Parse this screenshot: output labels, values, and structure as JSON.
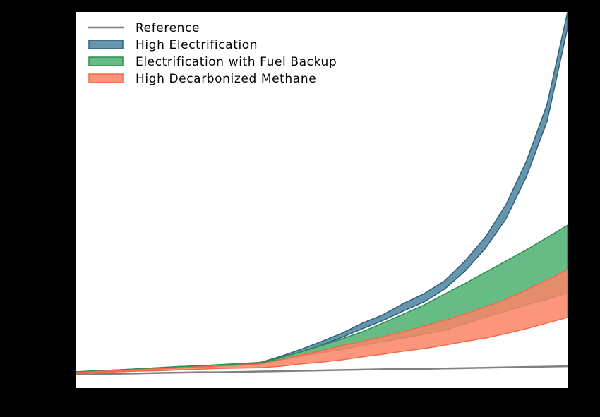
{
  "chart_data": {
    "type": "band",
    "xlim": [
      0,
      24
    ],
    "ylim": [
      0,
      100
    ],
    "x": [
      0,
      1,
      2,
      3,
      4,
      5,
      6,
      7,
      8,
      9,
      10,
      11,
      12,
      13,
      14,
      15,
      16,
      17,
      18,
      19,
      20,
      21,
      22,
      23,
      24
    ],
    "legend": "upper left",
    "series": [
      {
        "name": "Reference",
        "kind": "line",
        "color": "#808080",
        "values": [
          3.6,
          3.7,
          3.8,
          3.9,
          4.0,
          4.1,
          4.2,
          4.2,
          4.3,
          4.4,
          4.5,
          4.6,
          4.7,
          4.8,
          4.9,
          5.0,
          5.1,
          5.1,
          5.2,
          5.3,
          5.4,
          5.5,
          5.6,
          5.7,
          5.8
        ]
      },
      {
        "name": "High Electrification",
        "kind": "band",
        "color": "#4a84a0",
        "edge": "#2e5f78",
        "upper": [
          4.3,
          4.6,
          4.8,
          5.1,
          5.4,
          5.7,
          5.9,
          6.2,
          6.5,
          6.8,
          8.4,
          10.3,
          12.4,
          14.6,
          17.3,
          19.5,
          22.5,
          25.1,
          28.5,
          33.8,
          40.2,
          48.8,
          60.4,
          75.4,
          100
        ],
        "lower": [
          3.9,
          4.2,
          4.4,
          4.7,
          5.0,
          5.3,
          5.5,
          5.8,
          6.1,
          6.4,
          8.0,
          9.6,
          11.4,
          13.5,
          15.8,
          18.0,
          20.5,
          22.9,
          26.3,
          31.1,
          37.2,
          45.0,
          56.3,
          70.9,
          95.7
        ]
      },
      {
        "name": "Electrification with Fuel Backup",
        "kind": "band",
        "color": "#4caf6e",
        "edge": "#2e8b50",
        "upper": [
          4.3,
          4.6,
          4.8,
          5.1,
          5.4,
          5.7,
          5.9,
          6.2,
          6.5,
          6.8,
          8.1,
          9.6,
          11.3,
          13.1,
          15.0,
          17.3,
          19.7,
          22.1,
          25.0,
          27.8,
          30.8,
          33.8,
          36.8,
          40.0,
          43.3
        ],
        "lower": [
          3.9,
          4.2,
          4.4,
          4.7,
          5.0,
          5.3,
          5.5,
          5.8,
          6.1,
          6.8,
          7.5,
          8.4,
          9.4,
          10.3,
          11.3,
          12.4,
          13.3,
          14.3,
          15.4,
          17.1,
          18.8,
          20.5,
          22.1,
          23.6,
          25.3
        ]
      },
      {
        "name": "High Decarbonized Methane",
        "kind": "band",
        "color": "#fa8466",
        "edge": "#f26a4a",
        "upper": [
          4.1,
          4.4,
          4.6,
          4.9,
          5.1,
          5.4,
          5.6,
          5.9,
          6.1,
          6.4,
          7.5,
          8.8,
          9.9,
          11.3,
          12.4,
          13.7,
          15.0,
          16.5,
          18.0,
          19.7,
          21.6,
          23.6,
          26.1,
          28.7,
          31.5
        ],
        "lower": [
          3.9,
          4.1,
          4.3,
          4.5,
          4.6,
          4.8,
          5.0,
          5.2,
          5.3,
          5.4,
          5.8,
          6.4,
          6.9,
          7.5,
          8.3,
          9.0,
          9.8,
          10.5,
          11.4,
          12.4,
          13.3,
          14.5,
          15.8,
          17.3,
          18.8
        ]
      }
    ]
  }
}
